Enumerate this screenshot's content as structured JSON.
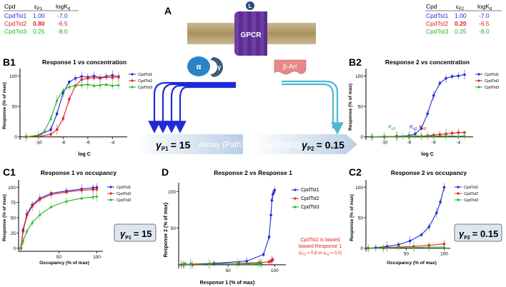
{
  "panel_a": {
    "letter": "A",
    "receptor_label": "GPCR",
    "ligand_label": "L",
    "g_alpha": "α",
    "g_betagamma": "βγ",
    "arrestin": "β-Arr",
    "assay1": "Assay (Path1)",
    "assay2": "Assay (Path2)",
    "gamma_p1": "γ",
    "gamma_p1_sub": "P1",
    "gamma_p1_value": "= 15",
    "gamma_p2": "γ",
    "gamma_p2_sub": "P2",
    "gamma_p2_value": "= 0.15"
  },
  "table_left": {
    "headers": [
      "Cpd",
      "ε",
      "P1",
      "logK",
      "d"
    ],
    "rows": [
      {
        "cpd": "CpdTst1",
        "eps": "1.00",
        "logk": "-7.0"
      },
      {
        "cpd": "CpdTst2",
        "eps": "0.80",
        "logk": "-6.5"
      },
      {
        "cpd": "CpdTst3",
        "eps": "0.25",
        "logk": "-8.0"
      }
    ]
  },
  "table_right": {
    "headers": [
      "Cpd",
      "ε",
      "P2",
      "logK",
      "d"
    ],
    "rows": [
      {
        "cpd": "CpdTst1",
        "eps": "1.00",
        "logk": "-7.0"
      },
      {
        "cpd": "CpdTst2",
        "eps": "0.20",
        "logk": "-6.5"
      },
      {
        "cpd": "CpdTst3",
        "eps": "0.25",
        "logk": "-8.0"
      }
    ]
  },
  "colors": {
    "CpdTst1": "#1f2bd6",
    "CpdTst2": "#e02020",
    "CpdTst3": "#22b322"
  },
  "panels": {
    "b1": {
      "letter": "B1",
      "title": "Response 1 vs concentration",
      "xlabel": "log C",
      "ylabel": "Response (% of max)"
    },
    "b2": {
      "letter": "B2",
      "title": "Response 2 vs concentration",
      "xlabel": "log C",
      "ylabel": "Response (% of max)",
      "kd_labels": [
        "K",
        "d3",
        "K",
        "d1",
        "K",
        "d2"
      ]
    },
    "c1": {
      "letter": "C1",
      "title": "Response 1 vs occupancy",
      "xlabel": "Occupancy (% of max)",
      "ylabel": "Response (% of max)",
      "gamma": "γ",
      "gamma_sub": "P1",
      "gamma_value": "= 15"
    },
    "d": {
      "letter": "D",
      "title": "Response 2 vs Response 1",
      "xlabel": "Response 1 (% of max)",
      "ylabel": "Response 2 (% of max)",
      "note1": "CpdTst2 is biased",
      "note2": "toward Response 1",
      "note3": "(ε",
      "note3b": "P1",
      "note3c": " = 0.8 vs ε",
      "note3d": "P2",
      "note3e": " = 0.2)"
    },
    "c2": {
      "letter": "C2",
      "title": "Response 2 vs occupancy",
      "xlabel": "Occupancy (% of max)",
      "ylabel": "Response (% of max)",
      "gamma": "γ",
      "gamma_sub": "P2",
      "gamma_value": "= 0.15"
    }
  },
  "chart_data": [
    {
      "type": "line",
      "title": "Response 1 vs concentration",
      "xlabel": "log C",
      "ylabel": "Response (% of max)",
      "xlim": [
        -11.5,
        -2.8
      ],
      "ylim": [
        -5,
        112
      ],
      "xticks": [
        -10,
        -8,
        -6,
        -4
      ],
      "yticks": [
        0,
        50,
        100
      ],
      "series": [
        {
          "name": "CpdTst1",
          "x": [
            -11,
            -10,
            -9,
            -8.5,
            -8,
            -7.5,
            -7,
            -6.5,
            -6,
            -5.5,
            -5,
            -4.5,
            -4,
            -3.5
          ],
          "y": [
            0,
            2,
            12,
            38,
            72,
            90,
            96,
            99,
            98,
            100,
            97,
            99,
            101,
            98
          ]
        },
        {
          "name": "CpdTst2",
          "x": [
            -11,
            -10,
            -9,
            -8.5,
            -8,
            -7.5,
            -7,
            -6.5,
            -6,
            -5.5,
            -5,
            -4.5,
            -4,
            -3.5
          ],
          "y": [
            0,
            1,
            4,
            12,
            30,
            62,
            84,
            94,
            96,
            97,
            96,
            98,
            97,
            99
          ]
        },
        {
          "name": "CpdTst3",
          "x": [
            -11,
            -10,
            -9.5,
            -9,
            -8.5,
            -8,
            -7.5,
            -7,
            -6.5,
            -6,
            -5.5,
            -5,
            -4.5,
            -4,
            -3.5
          ],
          "y": [
            0,
            3,
            10,
            30,
            60,
            76,
            82,
            84,
            85,
            86,
            84,
            85,
            86,
            84,
            85
          ]
        }
      ]
    },
    {
      "type": "line",
      "title": "Response 2 vs concentration",
      "xlabel": "log C",
      "ylabel": "Response (% of max)",
      "xlim": [
        -11.5,
        -2.8
      ],
      "ylim": [
        -5,
        112
      ],
      "xticks": [
        -10,
        -8,
        -6,
        -4
      ],
      "yticks": [
        0,
        50,
        100
      ],
      "series": [
        {
          "name": "CpdTst1",
          "x": [
            -11,
            -10,
            -9,
            -8,
            -7.5,
            -7,
            -6.5,
            -6,
            -5.5,
            -5,
            -4.5,
            -4,
            -3.5
          ],
          "y": [
            0,
            0,
            1,
            2,
            5,
            14,
            38,
            68,
            88,
            96,
            99,
            100,
            102
          ]
        },
        {
          "name": "CpdTst2",
          "x": [
            -11,
            -10,
            -9,
            -8,
            -7,
            -6.5,
            -6,
            -5.5,
            -5,
            -4.5,
            -4,
            -3.5
          ],
          "y": [
            0,
            0,
            1,
            0,
            1,
            2,
            3,
            4,
            5,
            6,
            7,
            7
          ]
        },
        {
          "name": "CpdTst3",
          "x": [
            -11,
            -10,
            -9,
            -8.5,
            -8,
            -7.5,
            -7,
            -6.5,
            -6,
            -5,
            -4,
            -3.5
          ],
          "y": [
            0,
            1,
            0,
            1,
            1,
            2,
            1,
            2,
            1,
            2,
            1,
            2
          ]
        }
      ]
    },
    {
      "type": "line",
      "title": "Response 1 vs occupancy",
      "xlabel": "Occupancy (% of max)",
      "ylabel": "Response (% of max)",
      "xlim": [
        -3,
        108
      ],
      "ylim": [
        -5,
        112
      ],
      "xticks": [
        50,
        100
      ],
      "yticks": [
        0,
        25,
        50,
        75,
        100
      ],
      "series": [
        {
          "name": "CpdTst1",
          "x": [
            0,
            3,
            8,
            15,
            25,
            40,
            60,
            80,
            95,
            100
          ],
          "y": [
            0,
            30,
            56,
            71,
            82,
            90,
            94,
            97,
            99,
            100
          ]
        },
        {
          "name": "CpdTst2",
          "x": [
            0,
            3,
            8,
            15,
            25,
            40,
            60,
            80,
            95,
            100
          ],
          "y": [
            0,
            28,
            54,
            69,
            80,
            88,
            92,
            95,
            96,
            97
          ]
        },
        {
          "name": "CpdTst3",
          "x": [
            0,
            3,
            8,
            15,
            25,
            40,
            60,
            80,
            95,
            100
          ],
          "y": [
            0,
            12,
            28,
            42,
            55,
            68,
            77,
            82,
            84,
            85
          ]
        }
      ]
    },
    {
      "type": "scatter",
      "title": "Response 2 vs Response 1",
      "xlabel": "Response 1 (% of max)",
      "ylabel": "Response 2 (% of max)",
      "xlim": [
        -3,
        112
      ],
      "ylim": [
        -5,
        112
      ],
      "xticks": [
        50,
        100
      ],
      "yticks": [
        50,
        100
      ],
      "series": [
        {
          "name": "CpdTst1",
          "x": [
            0,
            2,
            10,
            35,
            70,
            88,
            94,
            96,
            97,
            98,
            99,
            100
          ],
          "y": [
            0,
            0,
            1,
            2,
            5,
            14,
            38,
            68,
            88,
            96,
            99,
            102
          ]
        },
        {
          "name": "CpdTst2",
          "x": [
            0,
            4,
            12,
            30,
            62,
            84,
            94,
            96,
            97,
            98
          ],
          "y": [
            0,
            1,
            0,
            1,
            2,
            3,
            4,
            5,
            6,
            7
          ]
        },
        {
          "name": "CpdTst3",
          "x": [
            0,
            3,
            10,
            30,
            60,
            76,
            82,
            84,
            85,
            86
          ],
          "y": [
            0,
            0,
            1,
            1,
            2,
            1,
            2,
            1,
            2,
            2
          ]
        }
      ]
    },
    {
      "type": "line",
      "title": "Response 2 vs occupancy",
      "xlabel": "Occupancy (% of max)",
      "ylabel": "Response (% of max)",
      "xlim": [
        -3,
        108
      ],
      "ylim": [
        -5,
        112
      ],
      "xticks": [
        50,
        100
      ],
      "yticks": [
        0,
        50,
        100
      ],
      "series": [
        {
          "name": "CpdTst1",
          "x": [
            0,
            10,
            25,
            40,
            55,
            70,
            80,
            90,
            95,
            100
          ],
          "y": [
            0,
            1,
            3,
            6,
            12,
            22,
            35,
            58,
            76,
            100
          ]
        },
        {
          "name": "CpdTst2",
          "x": [
            0,
            20,
            40,
            60,
            80,
            100
          ],
          "y": [
            0,
            1,
            2,
            3,
            5,
            7
          ]
        },
        {
          "name": "CpdTst3",
          "x": [
            0,
            20,
            40,
            60,
            80,
            100
          ],
          "y": [
            0,
            0,
            1,
            1,
            2,
            2
          ]
        }
      ]
    }
  ]
}
